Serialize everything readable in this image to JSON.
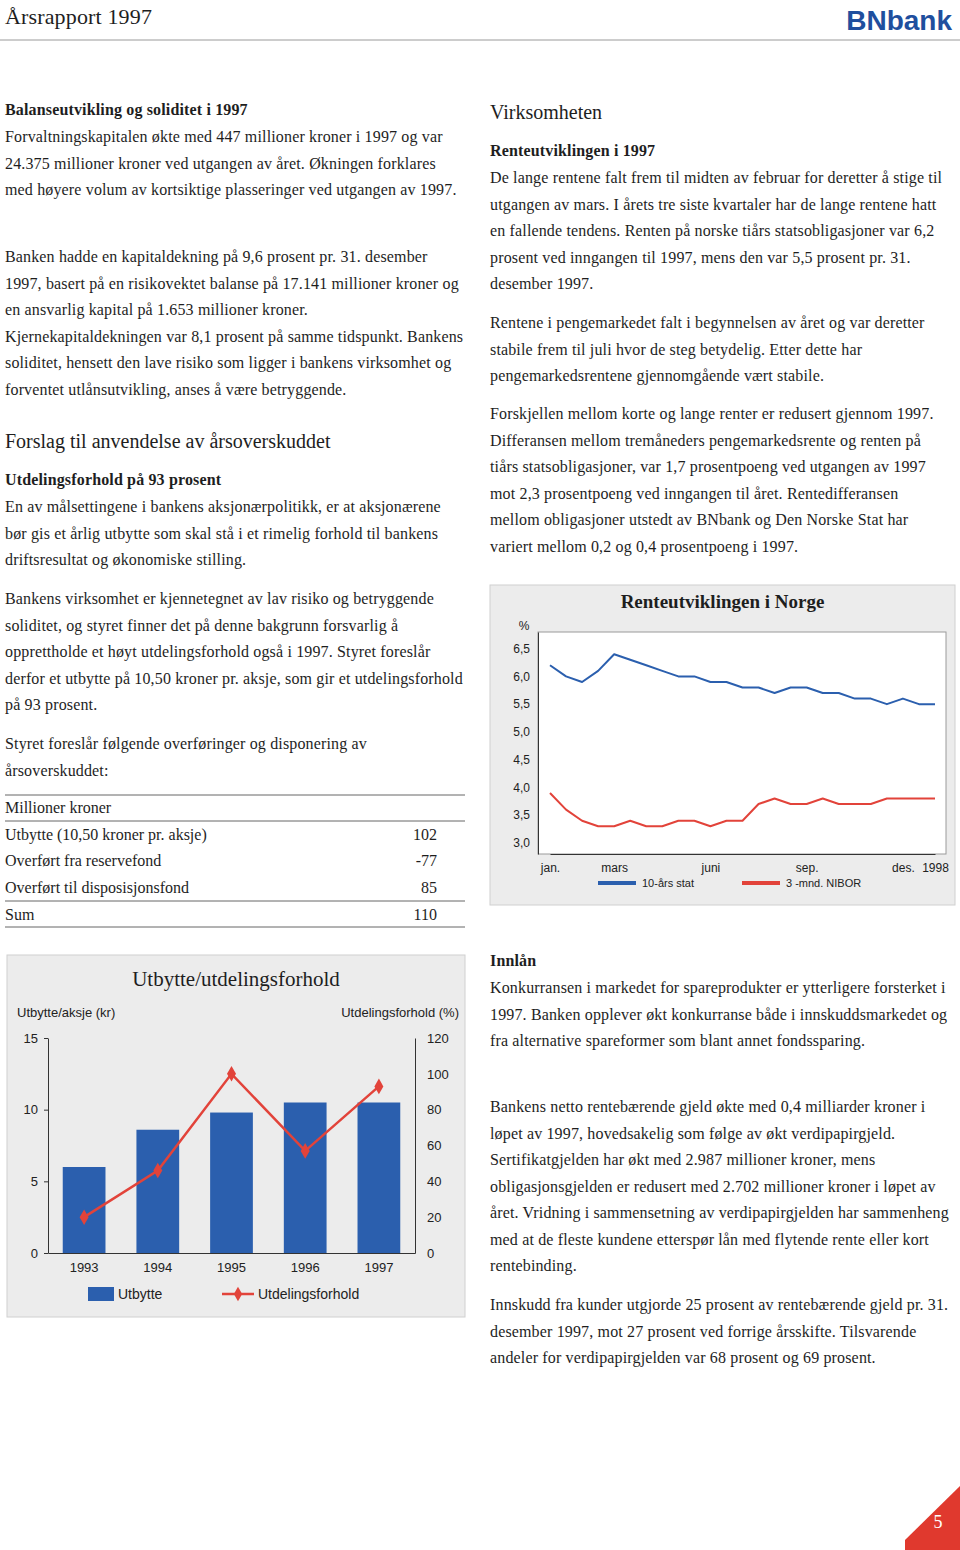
{
  "header": {
    "title": "Årsrapport 1997",
    "logo": "BNbank"
  },
  "left_column": {
    "balance": {
      "heading": "Balanseutvikling og soliditet i 1997",
      "paragraphs": [
        "Forvaltningskapitalen økte med 447 millioner kroner i 1997 og var 24.375 millioner kroner ved utgangen av året. Økningen forklares med høyere volum av kortsiktige plasseringer ved utgangen av 1997.",
        "Banken hadde en kapitaldekning på 9,6 prosent pr. 31. desember 1997, basert på en risikovektet balanse på 17.141 millioner kroner og en ansvarlig kapital på 1.653 millioner kroner. Kjernekapitaldekningen var 8,1 prosent på samme tidspunkt. Bankens soliditet, hensett den lave risiko som ligger i bankens virksomhet og forventet utlånsutvikling, anses å være betryggende."
      ]
    },
    "proposal": {
      "title": "Forslag til anvendelse av årsoverskuddet",
      "subheading": "Utdelingsforhold på 93 prosent",
      "paragraphs": [
        "En av målsettingene i bankens aksjonærpolitikk, er at aksjonærene bør gis et årlig utbytte som skal stå i et rimelig forhold til bankens driftsresultat og økonomiske stilling.",
        "Bankens virksomhet er kjennetegnet av lav risiko og betryggende soliditet, og styret finner det på denne bakgrunn forsvarlig å opprettholde et høyt utdelingsforhold også i 1997. Styret foreslår derfor et utbytte på 10,50 kroner pr. aksje, som gir et utdelingsforhold på 93 prosent.",
        "Styret foreslår følgende overføringer og disponering av årsoverskuddet:"
      ],
      "table": {
        "header": "Millioner kroner",
        "rows": [
          {
            "label": "Utbytte (10,50 kroner pr. aksje)",
            "value": 102
          },
          {
            "label": "Overført fra reservefond",
            "value": -77
          },
          {
            "label": "Overført til disposisjonsfond",
            "value": 85
          }
        ],
        "total": {
          "label": "Sum",
          "value": 110
        }
      }
    }
  },
  "right_column": {
    "operations": {
      "title": "Virksomheten",
      "subheading": "Renteutviklingen i 1997",
      "paragraphs": [
        "De lange rentene falt frem til midten av februar for deretter å stige til utgangen av mars. I årets tre siste kvartaler har de lange rentene hatt en fallende tendens. Renten på norske tiårs statsobligasjoner var 6,2 prosent ved inngangen til 1997, mens den var 5,5 prosent pr. 31. desember 1997.",
        "Rentene i pengemarkedet falt i begynnelsen av året og var deretter stabile frem til juli hvor de steg betydelig. Etter dette har pengemarkedsrentene gjennomgående vært stabile.",
        "Forskjellen mellom korte og lange renter er redusert gjennom 1997. Differansen mellom tremåneders pengemarkedsrente og renten på tiårs statsobligasjoner, var 1,7 prosentpoeng ved utgangen av 1997 mot 2,3 prosentpoeng ved inngangen til året. Rentedifferansen mellom obligasjoner utstedt av BNbank og Den Norske Stat har variert mellom 0,2 og 0,4 prosentpoeng i 1997."
      ]
    },
    "deposits": {
      "subheading": "Innlån",
      "paragraphs": [
        "Konkurransen i markedet for spareprodukter er ytterligere forsterket i 1997. Banken opplever økt konkurranse både i innskuddsmarkedet og fra alternative spareformer som blant annet fondssparing.",
        "Bankens netto rentebærende gjeld økte med 0,4 milliarder kroner i løpet av 1997, hovedsakelig som følge av økt verdipapirgjeld. Sertifikatgjelden har økt med 2.987 millioner kroner, mens obligasjonsgjelden er redusert med 2.702 millioner kroner i løpet av året. Vridning i sammensetning av verdipapirgjelden har sammenheng med at de fleste kundene etterspør lån med flytende rente eller kort rentebinding.",
        "Innskudd fra kunder utgjorde 25 prosent av rentebærende gjeld pr. 31. desember 1997, mot 27 prosent ved forrige årsskifte. Tilsvarende andeler for verdipapirgjelden var 68 prosent og 69 prosent."
      ]
    }
  },
  "page_number": "5",
  "chart_data": [
    {
      "type": "bar",
      "title": "Utbytte/utdelingsforhold",
      "y_label": "Utbytte/aksje (kr)",
      "y2_label": "Utdelingsforhold (%)",
      "categories": [
        "1993",
        "1994",
        "1995",
        "1996",
        "1997"
      ],
      "series": [
        {
          "name": "Utbytte",
          "type": "bar",
          "color": "#2b5fae",
          "values": [
            6.0,
            8.6,
            9.8,
            10.5,
            10.5
          ]
        },
        {
          "name": "Utdelingsforhold",
          "type": "line",
          "axis": "y2",
          "color": "#e2433a",
          "marker": "diamond",
          "values": [
            20,
            46,
            100,
            57,
            93
          ]
        }
      ],
      "ylim": [
        0,
        15
      ],
      "yticks": [
        0,
        5,
        10,
        15
      ],
      "y2lim": [
        0,
        120
      ],
      "y2ticks": [
        0,
        20,
        40,
        60,
        80,
        100,
        120
      ],
      "legend": "bottom"
    },
    {
      "type": "line",
      "title": "Renteutviklingen i Norge",
      "y_label": "%",
      "categories": [
        "jan.",
        null,
        null,
        null,
        "mars",
        null,
        null,
        null,
        null,
        null,
        "juni",
        null,
        null,
        null,
        null,
        null,
        "sep.",
        null,
        null,
        null,
        null,
        null,
        "des.",
        null,
        "1998"
      ],
      "series": [
        {
          "name": "10-års stat",
          "color": "#2b5fae",
          "values": [
            6.2,
            6.0,
            5.9,
            6.1,
            6.4,
            6.3,
            6.2,
            6.1,
            6.0,
            6.0,
            5.9,
            5.9,
            5.8,
            5.8,
            5.7,
            5.8,
            5.8,
            5.7,
            5.7,
            5.6,
            5.6,
            5.5,
            5.6,
            5.5,
            5.5
          ]
        },
        {
          "name": "3 -mnd. NIBOR",
          "color": "#e2433a",
          "values": [
            3.9,
            3.6,
            3.4,
            3.3,
            3.3,
            3.4,
            3.3,
            3.3,
            3.4,
            3.4,
            3.3,
            3.4,
            3.4,
            3.7,
            3.8,
            3.7,
            3.7,
            3.8,
            3.7,
            3.7,
            3.7,
            3.8,
            3.8,
            3.8,
            3.8
          ]
        }
      ],
      "ylim": [
        2.8,
        6.8
      ],
      "yticks": [
        {
          "value": 3,
          "label": "3,0"
        },
        {
          "value": 3.5,
          "label": "3,5"
        },
        {
          "value": 4,
          "label": "4,0"
        },
        {
          "value": 4.5,
          "label": "4,5"
        },
        {
          "value": 5,
          "label": "5,0"
        },
        {
          "value": 5.5,
          "label": "5,5"
        },
        {
          "value": 6,
          "label": "6,0"
        },
        {
          "value": 6.5,
          "label": "6,5"
        }
      ],
      "legend": "bottom"
    }
  ]
}
